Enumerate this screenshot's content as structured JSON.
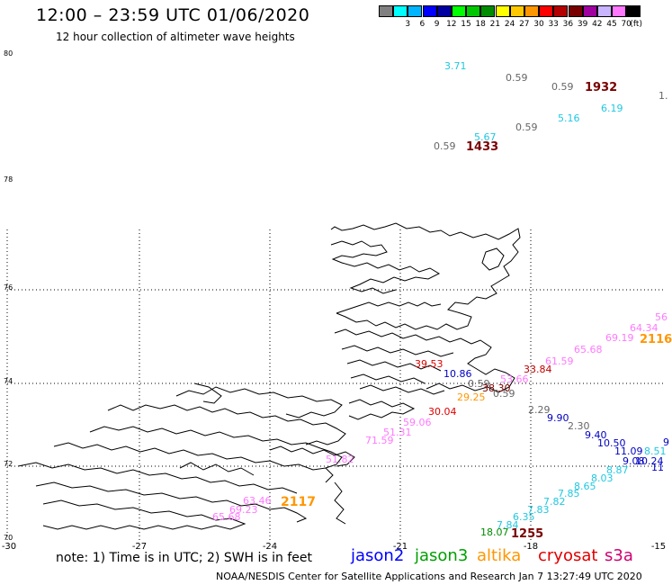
{
  "header": {
    "title": "12:00 – 23:59 UTC 01/06/2020",
    "subtitle": "12 hour collection of altimeter wave heights"
  },
  "colorbar": {
    "unit": "(ft)",
    "swatches": [
      {
        "color": "#808080",
        "label": ""
      },
      {
        "color": "#00ffff",
        "label": "3"
      },
      {
        "color": "#00b4ff",
        "label": "6"
      },
      {
        "color": "#0000ff",
        "label": "9"
      },
      {
        "color": "#0000a0",
        "label": "12"
      },
      {
        "color": "#00ff00",
        "label": "15"
      },
      {
        "color": "#00c800",
        "label": "18"
      },
      {
        "color": "#008c00",
        "label": "21"
      },
      {
        "color": "#ffff00",
        "label": "24"
      },
      {
        "color": "#ffc800",
        "label": "27"
      },
      {
        "color": "#ff9600",
        "label": "30"
      },
      {
        "color": "#ff0000",
        "label": "33"
      },
      {
        "color": "#b40000",
        "label": "36"
      },
      {
        "color": "#780000",
        "label": "39"
      },
      {
        "color": "#a000a0",
        "label": "42"
      },
      {
        "color": "#c8b4ff",
        "label": "45"
      },
      {
        "color": "#ff78ff",
        "label": "70"
      },
      {
        "color": "#000000",
        "label": ""
      }
    ]
  },
  "axes": {
    "lat_labels": [
      "80",
      "78",
      "76",
      "74",
      "72",
      "70"
    ],
    "lon_labels": [
      "-30",
      "-27",
      "-24",
      "-21",
      "-18",
      "-15"
    ]
  },
  "wave_labels": [
    {
      "text": "3.71",
      "color": "#20c8e0"
    },
    {
      "text": "0.59",
      "color": "#666666"
    },
    {
      "text": "0.59",
      "color": "#666666"
    },
    {
      "text": "1932",
      "color": "#7a0000"
    },
    {
      "text": "1.",
      "color": "#666666"
    },
    {
      "text": "6.19",
      "color": "#20c8e0"
    },
    {
      "text": "5.16",
      "color": "#20c8e0"
    },
    {
      "text": "0.59",
      "color": "#666666"
    },
    {
      "text": "5.67",
      "color": "#20c8e0"
    },
    {
      "text": "0.59",
      "color": "#666666"
    },
    {
      "text": "1433",
      "color": "#7a0000"
    },
    {
      "text": "56",
      "color": "#ff78ff"
    },
    {
      "text": "64.34",
      "color": "#ff78ff"
    },
    {
      "text": "2116",
      "color": "#ff9600"
    },
    {
      "text": "69.19",
      "color": "#ff78ff"
    },
    {
      "text": "65.68",
      "color": "#ff78ff"
    },
    {
      "text": "61.59",
      "color": "#ff78ff"
    },
    {
      "text": "33.84",
      "color": "#c00000"
    },
    {
      "text": "39.53",
      "color": "#e00000"
    },
    {
      "text": "10.86",
      "color": "#0000c0"
    },
    {
      "text": "0.59",
      "color": "#666666"
    },
    {
      "text": "38.30",
      "color": "#7a0000"
    },
    {
      "text": "53.66",
      "color": "#ff78ff"
    },
    {
      "text": "29.25",
      "color": "#ff9600"
    },
    {
      "text": "0.59",
      "color": "#666666"
    },
    {
      "text": "2.29",
      "color": "#666666"
    },
    {
      "text": "30.04",
      "color": "#e00000"
    },
    {
      "text": "9.90",
      "color": "#0000c0"
    },
    {
      "text": "59.06",
      "color": "#ff78ff"
    },
    {
      "text": "2.30",
      "color": "#666666"
    },
    {
      "text": "51.31",
      "color": "#ff78ff"
    },
    {
      "text": "9.40",
      "color": "#0000c0"
    },
    {
      "text": "71.59",
      "color": "#ff78ff"
    },
    {
      "text": "10.50",
      "color": "#0000c0"
    },
    {
      "text": "9",
      "color": "#0000c0"
    },
    {
      "text": "11.09",
      "color": "#0000c0"
    },
    {
      "text": "8.51",
      "color": "#20c8e0"
    },
    {
      "text": "9.08",
      "color": "#0000c0"
    },
    {
      "text": "10.24",
      "color": "#0000c0"
    },
    {
      "text": "11",
      "color": "#0000c0"
    },
    {
      "text": "8.87",
      "color": "#20c8e0"
    },
    {
      "text": "8.03",
      "color": "#20c8e0"
    },
    {
      "text": "8.65",
      "color": "#20c8e0"
    },
    {
      "text": "7.85",
      "color": "#20c8e0"
    },
    {
      "text": "7.82",
      "color": "#20c8e0"
    },
    {
      "text": "63.46",
      "color": "#ff78ff"
    },
    {
      "text": "2117",
      "color": "#ff9600"
    },
    {
      "text": "69.23",
      "color": "#ff78ff"
    },
    {
      "text": "7.83",
      "color": "#20c8e0"
    },
    {
      "text": "65.68",
      "color": "#ff78ff"
    },
    {
      "text": "6.35",
      "color": "#20c8e0"
    },
    {
      "text": "7.84",
      "color": "#20c8e0"
    },
    {
      "text": "1255",
      "color": "#7a0000"
    },
    {
      "text": "18.07",
      "color": "#008c00"
    },
    {
      "text": "51.82",
      "color": "#ff78ff"
    }
  ],
  "footer": {
    "note": "note: 1) Time is in UTC; 2) SWH is in feet",
    "legend": [
      {
        "name": "jason2",
        "color": "#0000ff"
      },
      {
        "name": "jason3",
        "color": "#00a000"
      },
      {
        "name": "altika",
        "color": "#ff9600"
      },
      {
        "name": "cryosat",
        "color": "#e00000"
      },
      {
        "name": "s3a",
        "color": "#d00070"
      }
    ],
    "credit": "NOAA/NESDIS Center for Satellite Applications and Research    Jan  7 13:27:49 UTC 2020"
  }
}
